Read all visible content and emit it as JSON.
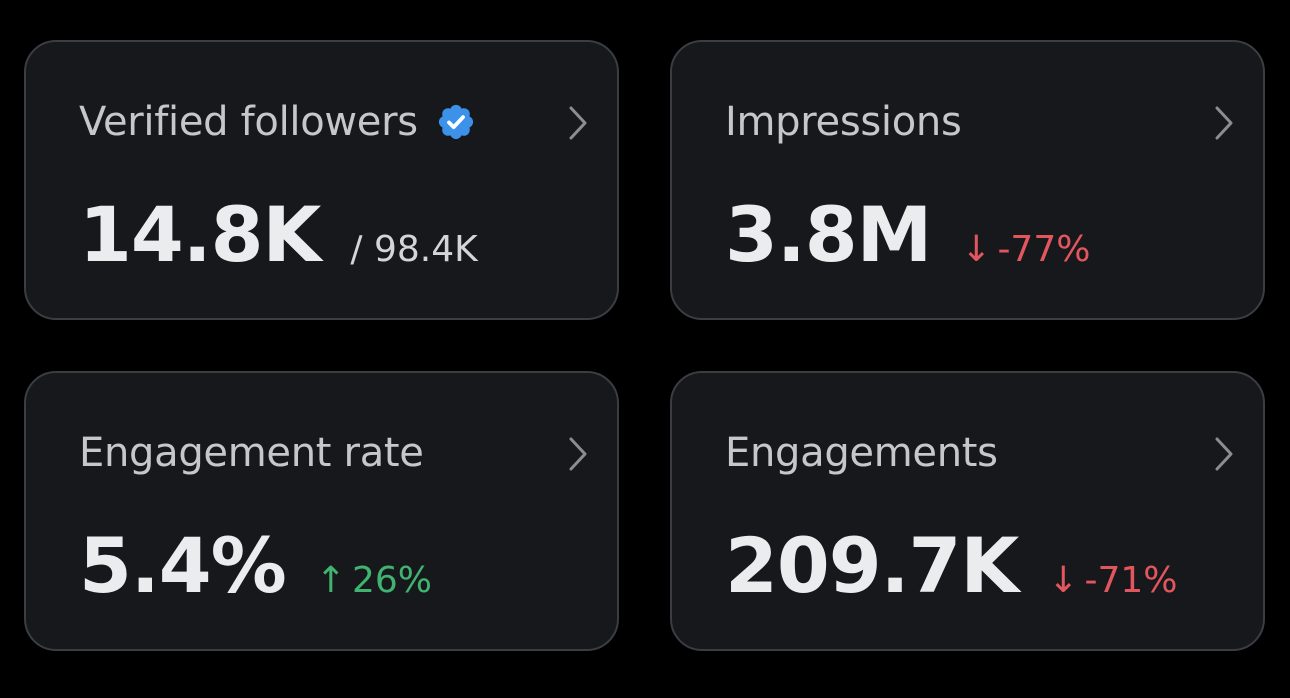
{
  "colors": {
    "background": "#000000",
    "card": "#17181c",
    "border": "#3a3d42",
    "label": "#c5c7cb",
    "value": "#ebecee",
    "negative": "#e2565d",
    "positive": "#3fb36f",
    "verified": "#3b92e8"
  },
  "cards": [
    {
      "title": "Verified followers",
      "icon": "verified-badge-icon",
      "value": "14.8K",
      "secondary": "/ 98.4K"
    },
    {
      "title": "Impressions",
      "value": "3.8M",
      "delta": {
        "arrow": "↓",
        "text": "-77%",
        "direction": "down"
      }
    },
    {
      "title": "Engagement rate",
      "value": "5.4%",
      "delta": {
        "arrow": "↑",
        "text": "26%",
        "direction": "up"
      }
    },
    {
      "title": "Engagements",
      "value": "209.7K",
      "delta": {
        "arrow": "↓",
        "text": "-71%",
        "direction": "down"
      }
    }
  ]
}
